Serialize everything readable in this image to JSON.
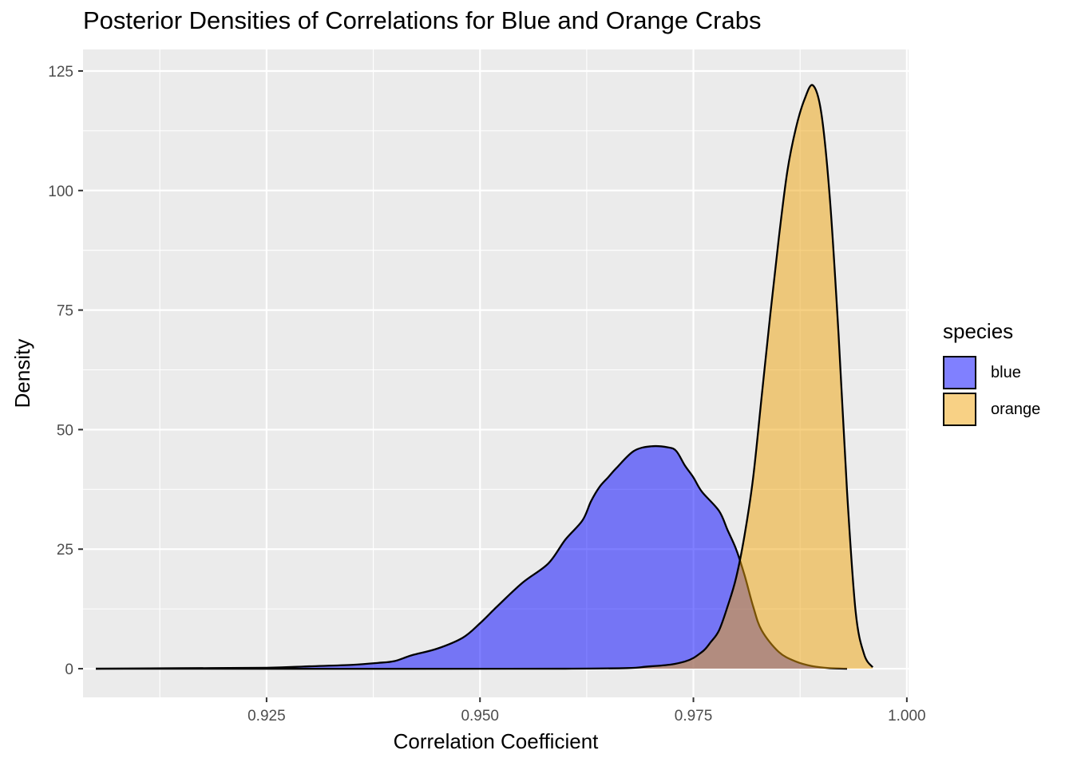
{
  "chart_data": {
    "type": "area",
    "title": "Posterior Densities of Correlations for Blue and Orange Crabs",
    "xlabel": "Correlation Coefficient",
    "ylabel": "Density",
    "xlim": [
      0.9035,
      1.0002
    ],
    "ylim": [
      -6,
      129.5
    ],
    "x_ticks": [
      0.925,
      0.95,
      0.975,
      1.0
    ],
    "x_tick_labels": [
      "0.925",
      "0.950",
      "0.975",
      "1.000"
    ],
    "y_ticks": [
      0,
      25,
      50,
      75,
      100,
      125
    ],
    "y_tick_labels": [
      "0",
      "25",
      "50",
      "75",
      "100",
      "125"
    ],
    "grid": true,
    "legend": {
      "title": "species",
      "position": "right"
    },
    "series": [
      {
        "name": "blue",
        "color": "#0000ff",
        "alpha": 0.5,
        "x": [
          0.905,
          0.915,
          0.925,
          0.93,
          0.935,
          0.938,
          0.94,
          0.942,
          0.945,
          0.948,
          0.95,
          0.952,
          0.955,
          0.958,
          0.96,
          0.962,
          0.963,
          0.964,
          0.965,
          0.966,
          0.968,
          0.97,
          0.972,
          0.973,
          0.974,
          0.975,
          0.976,
          0.978,
          0.979,
          0.98,
          0.981,
          0.982,
          0.983,
          0.985,
          0.987,
          0.989,
          0.991,
          0.993
        ],
        "y": [
          0,
          0.1,
          0.2,
          0.5,
          0.8,
          1.2,
          1.6,
          2.8,
          4.2,
          6.5,
          9.5,
          13,
          18,
          22,
          27,
          31,
          35,
          38,
          40,
          42,
          45.5,
          46.5,
          46.3,
          45.5,
          42.5,
          40,
          37,
          33,
          29,
          25,
          19.5,
          13,
          8,
          3.5,
          1.5,
          0.5,
          0.1,
          0
        ]
      },
      {
        "name": "orange",
        "color": "#f0a30a",
        "alpha": 0.5,
        "x": [
          0.905,
          0.96,
          0.97,
          0.974,
          0.976,
          0.977,
          0.978,
          0.979,
          0.98,
          0.981,
          0.982,
          0.983,
          0.984,
          0.985,
          0.986,
          0.987,
          0.988,
          0.989,
          0.99,
          0.991,
          0.992,
          0.993,
          0.994,
          0.995,
          0.996
        ],
        "y": [
          0,
          0,
          0.5,
          1.5,
          3.5,
          5.5,
          8,
          13,
          19,
          28,
          40,
          57,
          74,
          90,
          104,
          113,
          119,
          122,
          116,
          98,
          70,
          37,
          12,
          3,
          0.3
        ]
      }
    ]
  }
}
